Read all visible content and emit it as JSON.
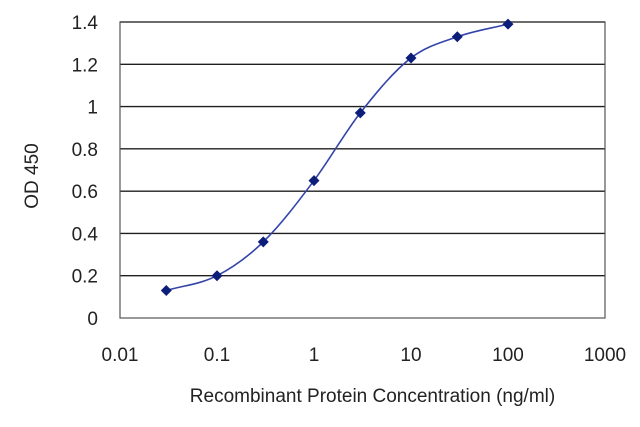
{
  "chart_data": {
    "type": "line",
    "title": "",
    "xlabel": "Recombinant Protein Concentration (ng/ml)",
    "ylabel": "OD 450",
    "x_scale": "log",
    "xlim": [
      0.01,
      1000
    ],
    "ylim": [
      0,
      1.4
    ],
    "x_ticks": [
      "0.01",
      "0.1",
      "1",
      "10",
      "100",
      "1000"
    ],
    "y_ticks": [
      "0",
      "0.2",
      "0.4",
      "0.6",
      "0.8",
      "1",
      "1.2",
      "1.4"
    ],
    "grid": "horizontal",
    "legend": "none",
    "colors": {
      "series": "#3344aa",
      "marker": "#0d1e7a"
    },
    "series": [
      {
        "x": [
          0.03,
          0.1,
          0.3,
          1,
          3,
          10,
          30,
          100
        ],
        "y": [
          0.13,
          0.2,
          0.36,
          0.65,
          0.97,
          1.23,
          1.33,
          1.39
        ]
      }
    ]
  }
}
